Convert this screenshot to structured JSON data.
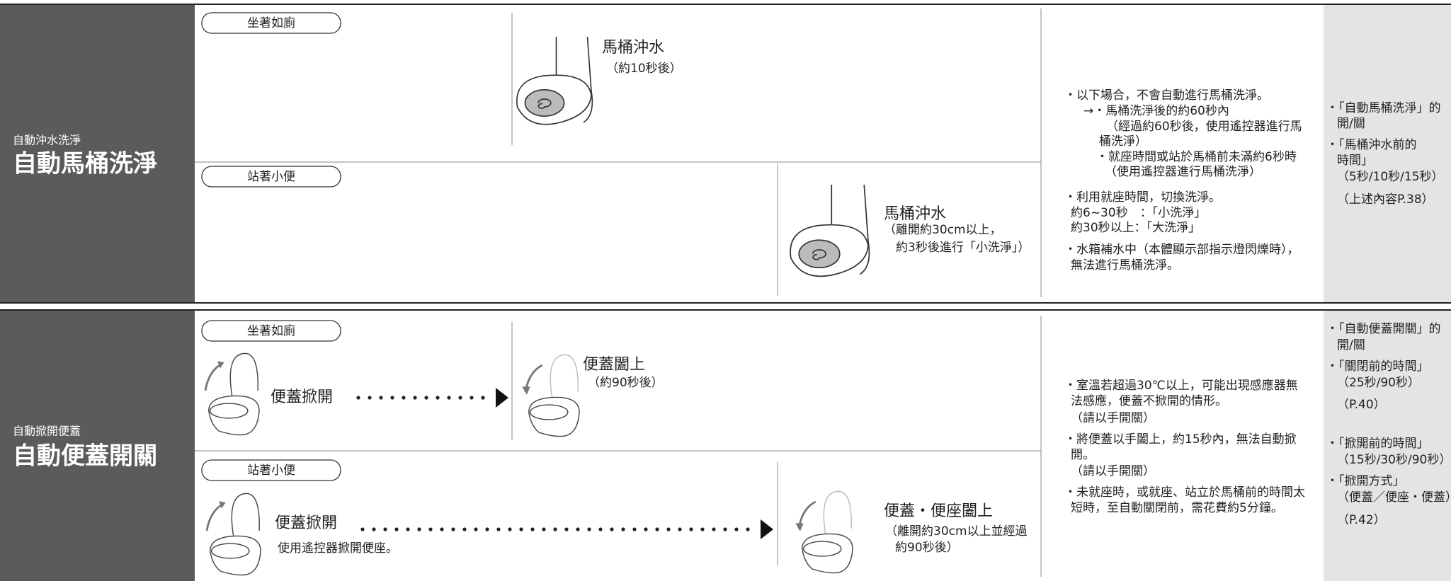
{
  "sections": [
    {
      "subtitle": "自動沖水洗淨",
      "title": "自動馬桶洗淨",
      "cases": [
        {
          "condition": "坐著如廁",
          "action": "馬桶沖水",
          "detail": [
            "（約10秒後）"
          ]
        },
        {
          "condition": "站著小便",
          "action": "馬桶沖水",
          "detail": [
            "（離開約30cm以上，",
            "約3秒後進行「小洗淨」）"
          ]
        }
      ],
      "notes": [
        "・以下場合，不會自動進行馬桶洗淨。",
        "→・馬桶洗淨後的約60秒內",
        "（經過約60秒後，使用遙控器進行馬",
        "桶洗淨）",
        "・就座時間或站於馬桶前未滿約6秒時",
        "（使用遙控器進行馬桶洗淨）",
        "・利用就座時間，切換洗淨。",
        "約6~30秒　：「小洗淨」",
        "約30秒以上：「大洗淨」",
        "・水箱補水中（本體顯示部指示燈閃爍時），",
        "無法進行馬桶洗淨。"
      ],
      "settings": [
        "・「自動馬桶洗淨」的",
        "開/關",
        "・「馬桶沖水前的",
        "時間」",
        "（5秒/10秒/15秒）",
        "（上述內容P.38）"
      ]
    },
    {
      "subtitle": "自動掀開便蓋",
      "title": "自動便蓋開關",
      "cases": [
        {
          "condition": "坐著如廁",
          "start": "便蓋掀開",
          "action": "便蓋闔上",
          "detail": [
            "（約90秒後）"
          ]
        },
        {
          "condition": "站著小便",
          "start": "便蓋掀開",
          "start_note": "使用遙控器掀開便座。",
          "action": "便蓋・便座闔上",
          "detail": [
            "（離開約30cm以上並經過",
            "約90秒後）"
          ]
        }
      ],
      "notes": [
        "・室溫若超過30℃以上，可能出現感應器無",
        "法感應，便蓋不掀開的情形。",
        "（請以手開關）",
        "・將便蓋以手闔上，約15秒內，無法自動掀",
        "開。",
        "（請以手開關）",
        "・未就座時，或就座、站立於馬桶前的時間太",
        "短時，至自動關閉前，需花費約5分鐘。"
      ],
      "settings": [
        "・「自動便蓋開關」的",
        "開/關",
        "・「關閉前的時間」",
        "（25秒/90秒）",
        "（P.40）",
        "・「掀開前的時間」",
        "（15秒/30秒/90秒）",
        "・「掀開方式」",
        "（便蓋／便座・便蓋）",
        "（P.42）"
      ]
    }
  ]
}
